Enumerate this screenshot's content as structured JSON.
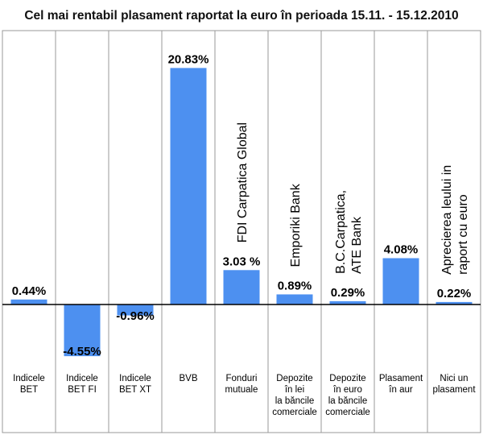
{
  "chart_data": {
    "type": "bar",
    "title": "Cel mai rentabil plasament raportat la euro în perioada 15.11. - 15.12.2010",
    "categories": [
      [
        "Indicele",
        "BET"
      ],
      [
        "Indicele",
        "BET FI"
      ],
      [
        "Indicele",
        "BET XT"
      ],
      [
        "BVB"
      ],
      [
        "Fonduri",
        "mutuale"
      ],
      [
        "Depozite",
        "în lei",
        "la băncile",
        "comerciale"
      ],
      [
        "Depozite",
        "în euro",
        "la băncile",
        "comerciale"
      ],
      [
        "Plasament",
        "în aur"
      ],
      [
        "Nici un",
        "plasament"
      ]
    ],
    "values": [
      0.44,
      -4.55,
      -0.96,
      20.83,
      3.03,
      0.89,
      0.29,
      4.08,
      0.22
    ],
    "data_labels": [
      "0.44%",
      "-4.55%",
      "-0.96%",
      "20.83%",
      "3.03 %",
      "0.89%",
      "0.29%",
      "4.08%",
      "0.22%"
    ],
    "annotations": [
      null,
      null,
      null,
      null,
      [
        "FDI Carpatica Global"
      ],
      [
        "Emporiki Bank"
      ],
      [
        "B.C.Carpatica,",
        "ATE Bank"
      ],
      null,
      [
        "Aprecierea leului in",
        "raport cu euro"
      ]
    ],
    "ylim": [
      -5,
      21
    ],
    "xlabel": "",
    "ylabel": "",
    "bar_color": "#4d90f0",
    "grid": false
  }
}
